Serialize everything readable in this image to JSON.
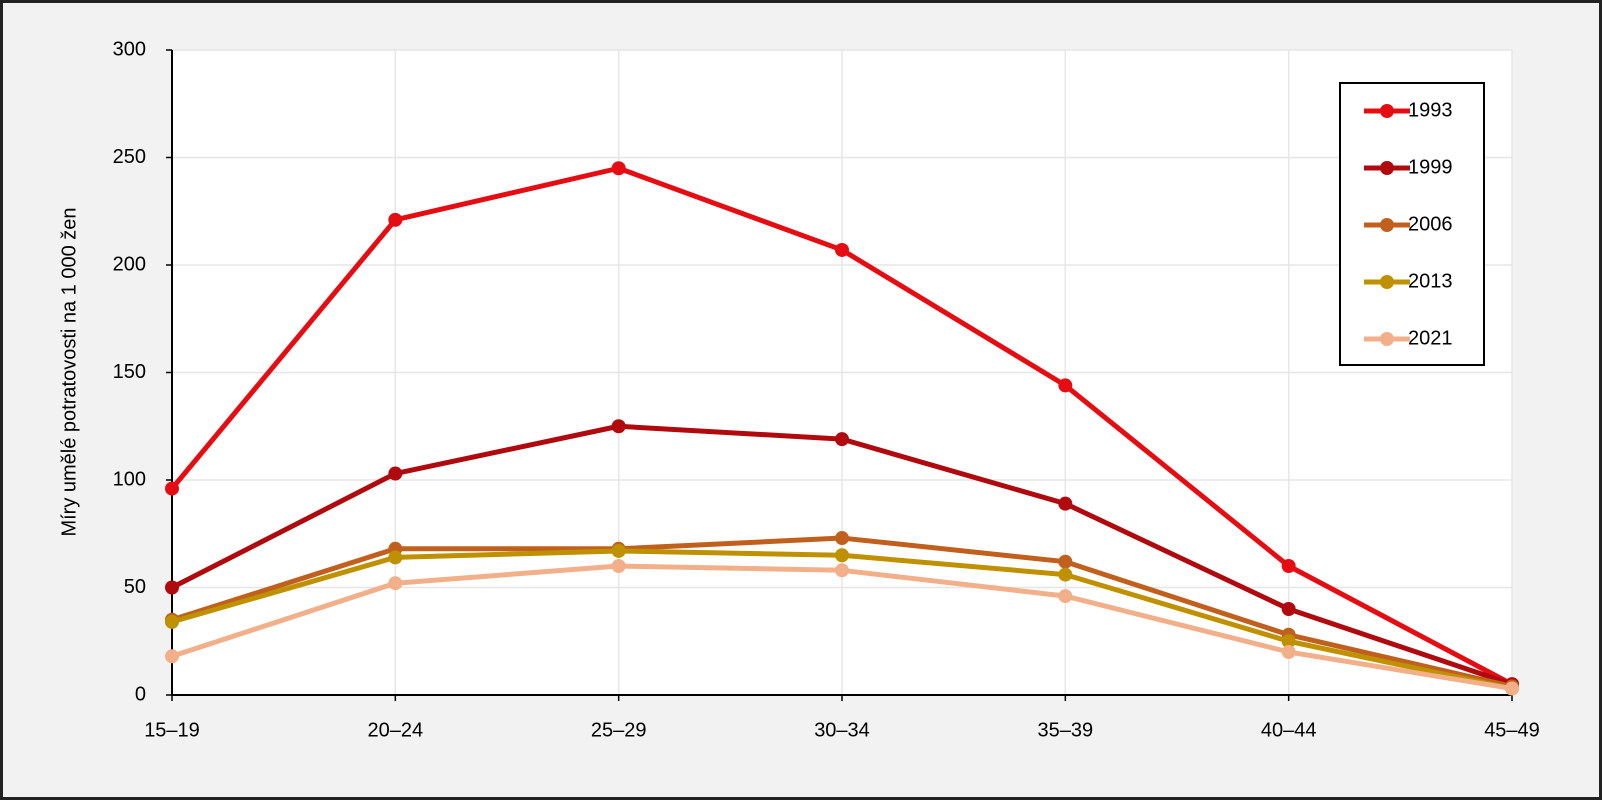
{
  "chart_data": {
    "type": "line",
    "y_label": "Míry umělé potratovosti na 1 000 žen",
    "categories": [
      "15–19",
      "20–24",
      "25–29",
      "30–34",
      "35–39",
      "40–44",
      "45–49"
    ],
    "series": [
      {
        "name": "1993",
        "color": "#e60d12",
        "values": [
          96,
          221,
          245,
          207,
          144,
          60,
          5
        ]
      },
      {
        "name": "1999",
        "color": "#b00a0e",
        "values": [
          50,
          103,
          125,
          119,
          89,
          40,
          5
        ]
      },
      {
        "name": "2006",
        "color": "#c0601c",
        "values": [
          35,
          68,
          68,
          73,
          62,
          28,
          4
        ]
      },
      {
        "name": "2013",
        "color": "#bf9100",
        "values": [
          34,
          64,
          67,
          65,
          56,
          25,
          3
        ]
      },
      {
        "name": "2021",
        "color": "#f2b08a",
        "values": [
          18,
          52,
          60,
          58,
          46,
          20,
          3
        ]
      }
    ],
    "ylim": [
      0,
      300
    ],
    "yticks": [
      0,
      50,
      100,
      150,
      200,
      250,
      300
    ],
    "grid": true,
    "legend": "upper right"
  }
}
